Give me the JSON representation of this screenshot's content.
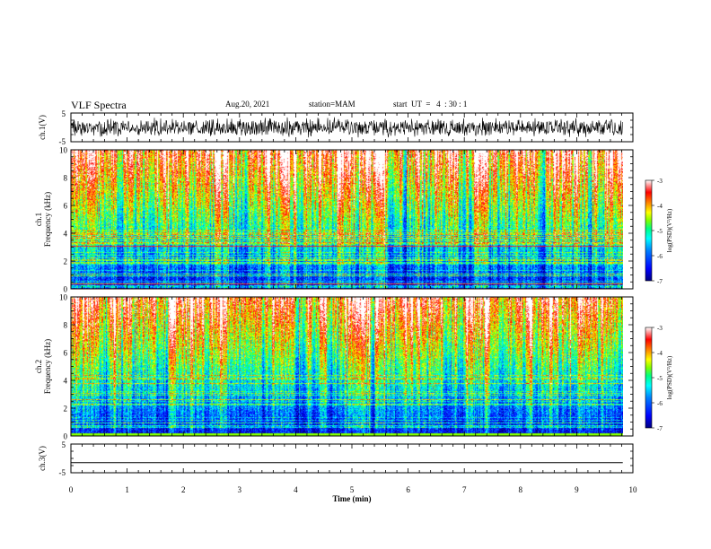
{
  "header": {
    "title": "VLF Spectra",
    "date": "Aug.20, 2021",
    "station": "station=MAM",
    "start_ut": "start  UT  =   4  : 30 : 1"
  },
  "chart_data": [
    {
      "type": "line",
      "panel": "ch.1 waveform",
      "ylabel": "ch.1(V)",
      "yticklabels": [
        "5",
        "-5"
      ],
      "ylim": [
        -5,
        5
      ],
      "xlim": [
        0,
        10
      ],
      "description_values": {
        "typical_range_V": [
          -3,
          3
        ]
      }
    },
    {
      "type": "heatmap",
      "panel": "ch.1 spectrogram",
      "ylabel": "ch.1\nFrequency (kHz)",
      "ylabel_lines": [
        "ch.1",
        "Frequency  (kHz)"
      ],
      "ylim": [
        0,
        10
      ],
      "yticks": [
        0,
        2,
        4,
        6,
        8,
        10
      ],
      "xlim": [
        0,
        10
      ],
      "data_end_min": 9.82,
      "colorbar": {
        "label": "log(PSD)(V²/Hz)",
        "range": [
          -7,
          -3
        ],
        "ticks": [
          -7,
          -6,
          -5,
          -4,
          -3
        ],
        "ticklabels": [
          "-7",
          "-6",
          "-5",
          "-4",
          "-3"
        ]
      },
      "notable_lines_kHz": [
        0.4,
        3.1
      ]
    },
    {
      "type": "heatmap",
      "panel": "ch.2 spectrogram",
      "ylabel": "ch.2\nFrequency (kHz)",
      "ylabel_lines": [
        "ch.2",
        "Frequency  (kHz)"
      ],
      "ylim": [
        0,
        10
      ],
      "yticks": [
        0,
        2,
        4,
        6,
        8,
        10
      ],
      "xlim": [
        0,
        10
      ],
      "data_end_min": 9.82,
      "colorbar": {
        "label": "log(PSD)(V²/Hz)",
        "range": [
          -7,
          -3
        ],
        "ticks": [
          -7,
          -6,
          -5,
          -4,
          -3
        ],
        "ticklabels": [
          "-7",
          "-6",
          "-5",
          "-4",
          "-3"
        ]
      }
    },
    {
      "type": "line",
      "panel": "ch.3 waveform",
      "ylabel": "ch.3(V)",
      "yticklabels": [
        "5",
        "-5"
      ],
      "ylim": [
        -5,
        5
      ],
      "xlim": [
        0,
        10
      ],
      "constant_value_V": -1.5
    }
  ],
  "xaxis": {
    "label": "Time  (min)",
    "ticks": [
      0,
      1,
      2,
      3,
      4,
      5,
      6,
      7,
      8,
      9,
      10
    ],
    "ticklabels": [
      "0",
      "1",
      "2",
      "3",
      "4",
      "5",
      "6",
      "7",
      "8",
      "9",
      "10"
    ]
  },
  "colors": {
    "colormap": [
      "#000080",
      "#0000ff",
      "#0080ff",
      "#00ffff",
      "#00ff80",
      "#80ff00",
      "#ffff00",
      "#ff8000",
      "#ff0000",
      "#ffffff"
    ],
    "line": "#000000"
  }
}
